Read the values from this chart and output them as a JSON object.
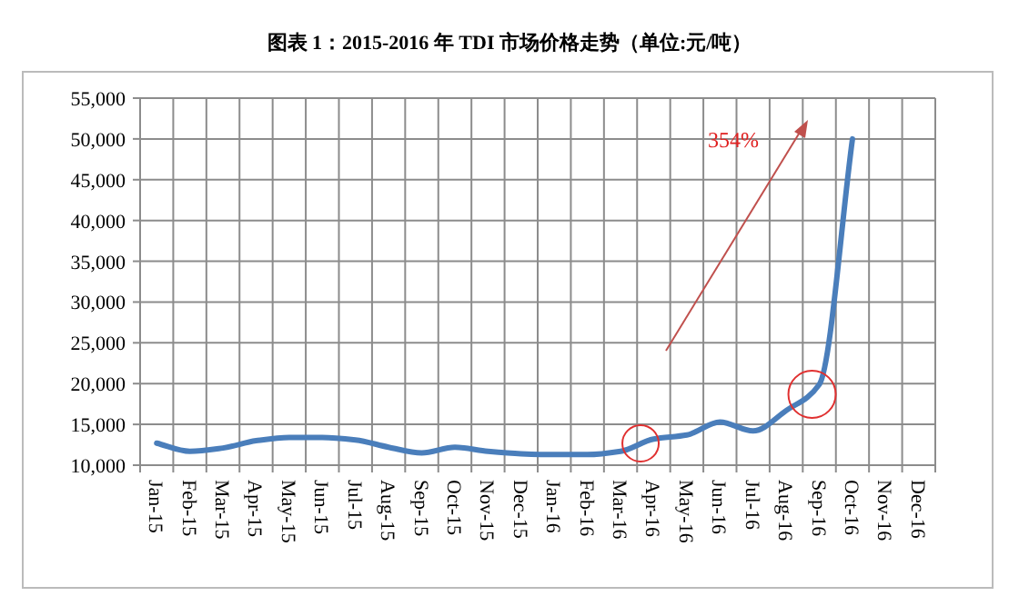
{
  "chart_data": {
    "type": "line",
    "title": "图表 1：2015-2016 年 TDI 市场价格走势（单位:元/吨）",
    "categories": [
      "Jan-15",
      "Feb-15",
      "Mar-15",
      "Apr-15",
      "May-15",
      "Jun-15",
      "Jul-15",
      "Aug-15",
      "Sep-15",
      "Oct-15",
      "Nov-15",
      "Dec-15",
      "Jan-16",
      "Feb-16",
      "Mar-16",
      "Apr-16",
      "May-16",
      "Jun-16",
      "Jul-16",
      "Aug-16",
      "Sep-16",
      "Oct-16",
      "Nov-16",
      "Dec-16"
    ],
    "series": [
      {
        "color": "#4a7ebb",
        "values": [
          12700,
          11700,
          12100,
          13000,
          13400,
          13400,
          13100,
          12200,
          11500,
          12200,
          11700,
          11400,
          11300,
          11300,
          11700,
          13200,
          13700,
          15300,
          14200,
          16700,
          19900,
          50000,
          null,
          null
        ]
      }
    ],
    "ylim": [
      10000,
      55000
    ],
    "yticks": [
      {
        "value": 10000,
        "label": "10,000"
      },
      {
        "value": 15000,
        "label": "15,000"
      },
      {
        "value": 20000,
        "label": "20,000"
      },
      {
        "value": 25000,
        "label": "25,000"
      },
      {
        "value": 30000,
        "label": "30,000"
      },
      {
        "value": 35000,
        "label": "35,000"
      },
      {
        "value": 40000,
        "label": "40,000"
      },
      {
        "value": 45000,
        "label": "45,000"
      },
      {
        "value": 50000,
        "label": "50,000"
      },
      {
        "value": 55000,
        "label": "55,000"
      }
    ],
    "grid": true,
    "marker": "none",
    "line_style": "solid",
    "annotations": [
      "354%"
    ]
  }
}
